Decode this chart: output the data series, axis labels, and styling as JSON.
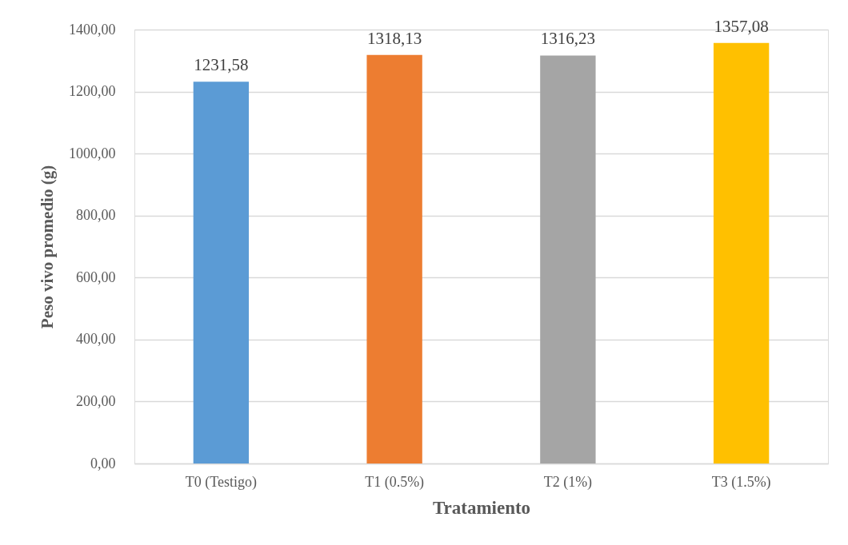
{
  "chart_data": {
    "type": "bar",
    "xlabel": "Tratamiento",
    "ylabel": "Peso vivo promedio (g)",
    "categories": [
      "T0 (Testigo)",
      "T1 (0.5%)",
      "T2 (1%)",
      "T3 (1.5%)"
    ],
    "values": [
      1231.58,
      1318.13,
      1316.23,
      1357.08
    ],
    "colors": [
      "#5b9bd5",
      "#ed7d31",
      "#a5a5a5",
      "#ffc000"
    ],
    "value_labels": [
      "1231,58",
      "1318,13",
      "1316,23",
      "1357,08"
    ],
    "ylim": [
      0,
      1400
    ],
    "yticks": [
      {
        "value": 0,
        "label": "0,00"
      },
      {
        "value": 200,
        "label": "200,00"
      },
      {
        "value": 400,
        "label": "400,00"
      },
      {
        "value": 600,
        "label": "600,00"
      },
      {
        "value": 800,
        "label": "800,00"
      },
      {
        "value": 1000,
        "label": "1000,00"
      },
      {
        "value": 1200,
        "label": "1200,00"
      },
      {
        "value": 1400,
        "label": "1400,00"
      }
    ],
    "grid": "y"
  }
}
